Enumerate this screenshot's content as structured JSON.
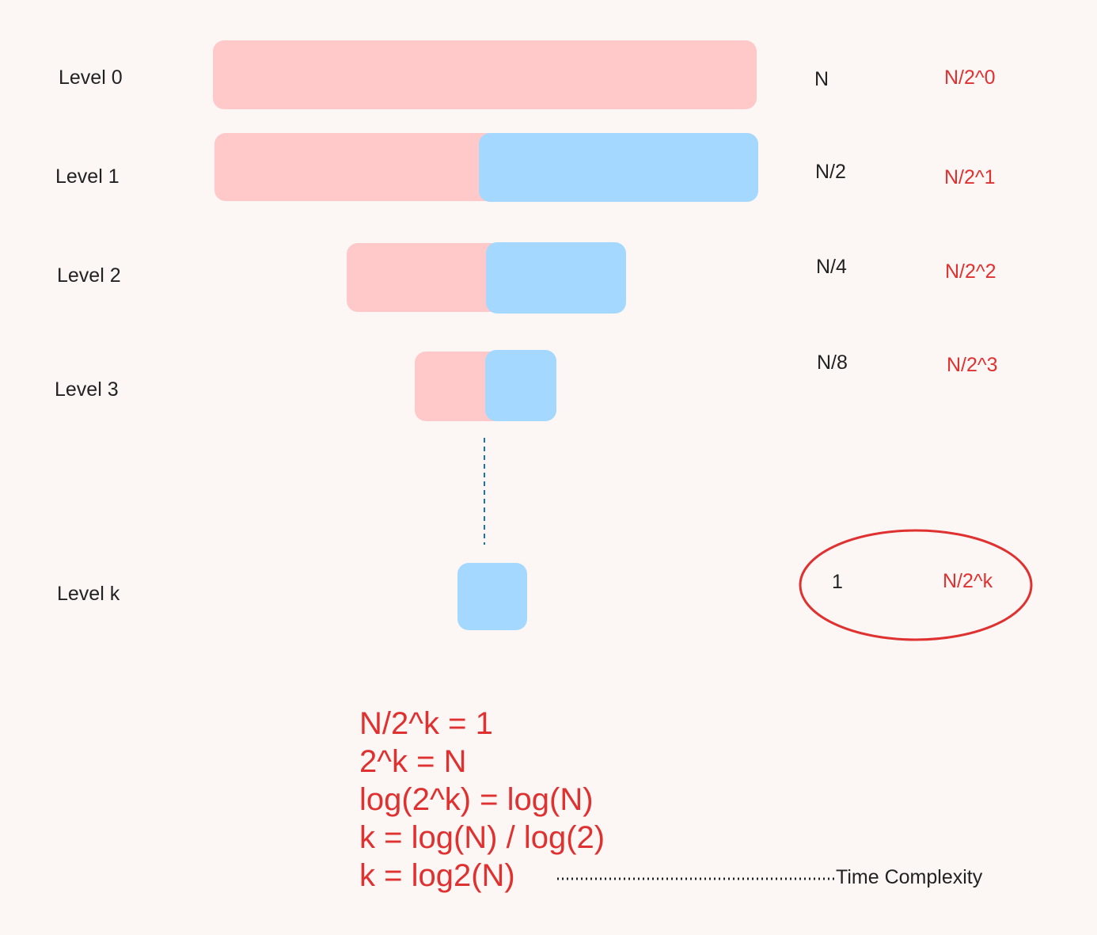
{
  "levels": [
    {
      "label": "Level 0",
      "size": "N",
      "formula": "N/2^0"
    },
    {
      "label": "Level 1",
      "size": "N/2",
      "formula": "N/2^1"
    },
    {
      "label": "Level 2",
      "size": "N/4",
      "formula": "N/2^2"
    },
    {
      "label": "Level 3",
      "size": "N/8",
      "formula": "N/2^3"
    },
    {
      "label": "Level k",
      "size": "1",
      "formula": "N/2^k"
    }
  ],
  "equations": [
    "N/2^k = 1",
    "2^k = N",
    "log(2^k) = log(N)",
    "k = log(N) / log(2)",
    "k = log2(N)"
  ],
  "annotation": "Time Complexity",
  "colors": {
    "background": "#fcf7f5",
    "pink_segment": "#ffc9c9",
    "blue_segment": "#a5d8ff",
    "accent_red": "#e03131",
    "dash_blue": "#1971c2"
  }
}
